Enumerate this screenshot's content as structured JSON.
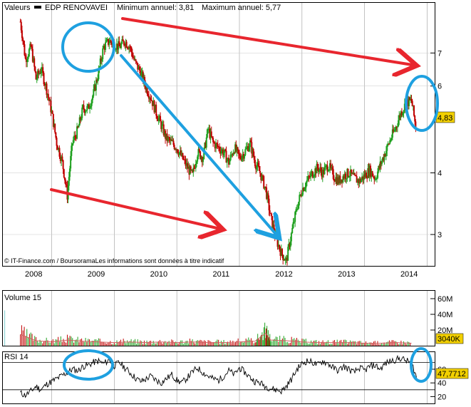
{
  "legend": {
    "series_label": "Valeurs",
    "instrument": "EDP RENOVAVEI",
    "min_label": "Minimum annuel: 3,81",
    "max_label": "Maximum annuel: 5,77"
  },
  "copyright": "© IT-Finance.com / BoursoramaLes informations sont données à titre indicatif",
  "colors": {
    "up": "#1fa01f",
    "down": "#c00000",
    "grid": "#9a9a9a",
    "price_badge": "#f2d000",
    "annotation_red": "#e8262e",
    "annotation_blue": "#1ea0e0",
    "volume_ma": "#d06060",
    "rsi_line": "#000000"
  },
  "chart_data": [
    {
      "type": "candlestick",
      "title": "EDP RENOVAVEI",
      "x_tick_labels": [
        "2008",
        "2009",
        "2010",
        "2011",
        "2012",
        "2013",
        "2014"
      ],
      "y_scale": "log",
      "y_tick_labels": [
        "3",
        "4",
        "6",
        "7"
      ],
      "ylim": [
        2.6,
        8.5
      ],
      "last_value_label": "4,83",
      "grid": true,
      "monthly_close": [
        [
          2008.0,
          8.1
        ],
        [
          2008.08,
          6.8
        ],
        [
          2008.17,
          7.2
        ],
        [
          2008.25,
          6.2
        ],
        [
          2008.33,
          6.5
        ],
        [
          2008.42,
          5.9
        ],
        [
          2008.5,
          5.3
        ],
        [
          2008.58,
          4.6
        ],
        [
          2008.67,
          4.2
        ],
        [
          2008.75,
          3.6
        ],
        [
          2008.83,
          4.6
        ],
        [
          2008.92,
          4.9
        ],
        [
          2009.0,
          5.4
        ],
        [
          2009.08,
          5.4
        ],
        [
          2009.17,
          5.8
        ],
        [
          2009.25,
          6.4
        ],
        [
          2009.33,
          7.2
        ],
        [
          2009.42,
          7.4
        ],
        [
          2009.5,
          7.3
        ],
        [
          2009.58,
          7.2
        ],
        [
          2009.67,
          7.4
        ],
        [
          2009.75,
          7.2
        ],
        [
          2009.83,
          6.7
        ],
        [
          2009.92,
          6.4
        ],
        [
          2010.0,
          6.0
        ],
        [
          2010.08,
          5.7
        ],
        [
          2010.17,
          5.3
        ],
        [
          2010.25,
          5.0
        ],
        [
          2010.33,
          4.7
        ],
        [
          2010.42,
          4.6
        ],
        [
          2010.5,
          4.5
        ],
        [
          2010.58,
          4.3
        ],
        [
          2010.67,
          4.1
        ],
        [
          2010.75,
          3.95
        ],
        [
          2010.83,
          4.4
        ],
        [
          2010.92,
          4.3
        ],
        [
          2011.0,
          4.9
        ],
        [
          2011.08,
          4.6
        ],
        [
          2011.17,
          4.5
        ],
        [
          2011.25,
          4.4
        ],
        [
          2011.33,
          4.2
        ],
        [
          2011.42,
          4.5
        ],
        [
          2011.5,
          4.3
        ],
        [
          2011.58,
          4.4
        ],
        [
          2011.67,
          4.6
        ],
        [
          2011.75,
          4.2
        ],
        [
          2011.83,
          4.0
        ],
        [
          2011.92,
          3.7
        ],
        [
          2012.0,
          3.25
        ],
        [
          2012.08,
          2.95
        ],
        [
          2012.17,
          2.75
        ],
        [
          2012.25,
          2.65
        ],
        [
          2012.33,
          3.0
        ],
        [
          2012.42,
          3.4
        ],
        [
          2012.5,
          3.7
        ],
        [
          2012.58,
          3.85
        ],
        [
          2012.67,
          4.0
        ],
        [
          2012.75,
          4.1
        ],
        [
          2012.83,
          4.0
        ],
        [
          2012.92,
          4.15
        ],
        [
          2013.0,
          3.95
        ],
        [
          2013.08,
          3.85
        ],
        [
          2013.17,
          3.95
        ],
        [
          2013.25,
          4.0
        ],
        [
          2013.33,
          3.9
        ],
        [
          2013.42,
          3.85
        ],
        [
          2013.5,
          3.95
        ],
        [
          2013.58,
          4.05
        ],
        [
          2013.67,
          3.9
        ],
        [
          2013.75,
          4.15
        ],
        [
          2013.83,
          4.4
        ],
        [
          2013.92,
          4.7
        ],
        [
          2014.0,
          4.95
        ],
        [
          2014.08,
          5.3
        ],
        [
          2014.17,
          5.55
        ],
        [
          2014.25,
          5.6
        ],
        [
          2014.33,
          4.83
        ]
      ]
    },
    {
      "type": "bar",
      "title": "Volume 15",
      "y_tick_labels": [
        "60M",
        "40M",
        "20M"
      ],
      "ylim": [
        0,
        70
      ],
      "last_value_label": "3040K",
      "monthly_volume_millions": [
        [
          2008.0,
          18
        ],
        [
          2008.25,
          8
        ],
        [
          2008.5,
          6
        ],
        [
          2008.75,
          9
        ],
        [
          2009.0,
          7
        ],
        [
          2009.25,
          6
        ],
        [
          2009.5,
          5
        ],
        [
          2009.75,
          6
        ],
        [
          2010.0,
          5
        ],
        [
          2010.25,
          6
        ],
        [
          2010.5,
          5
        ],
        [
          2010.75,
          6
        ],
        [
          2011.0,
          5
        ],
        [
          2011.25,
          5
        ],
        [
          2011.5,
          6
        ],
        [
          2011.75,
          7
        ],
        [
          2011.92,
          20
        ],
        [
          2012.0,
          9
        ],
        [
          2012.25,
          8
        ],
        [
          2012.5,
          6
        ],
        [
          2012.75,
          5
        ],
        [
          2013.0,
          5
        ],
        [
          2013.25,
          5
        ],
        [
          2013.5,
          4
        ],
        [
          2013.75,
          4
        ],
        [
          2014.0,
          5
        ],
        [
          2014.25,
          4
        ]
      ]
    },
    {
      "type": "line",
      "title": "RSI 14",
      "y_tick_labels": [
        "60",
        "40",
        "20"
      ],
      "ylim": [
        10,
        85
      ],
      "reference_lines": [
        70,
        30
      ],
      "last_value_label": "47,7712",
      "rsi": [
        [
          2008.0,
          25
        ],
        [
          2008.08,
          22
        ],
        [
          2008.17,
          28
        ],
        [
          2008.25,
          35
        ],
        [
          2008.33,
          30
        ],
        [
          2008.42,
          38
        ],
        [
          2008.5,
          42
        ],
        [
          2008.58,
          46
        ],
        [
          2008.67,
          51
        ],
        [
          2008.75,
          55
        ],
        [
          2008.83,
          60
        ],
        [
          2008.92,
          58
        ],
        [
          2009.0,
          64
        ],
        [
          2009.08,
          66
        ],
        [
          2009.17,
          70
        ],
        [
          2009.25,
          72
        ],
        [
          2009.33,
          68
        ],
        [
          2009.42,
          74
        ],
        [
          2009.5,
          65
        ],
        [
          2009.58,
          70
        ],
        [
          2009.67,
          62
        ],
        [
          2009.75,
          55
        ],
        [
          2009.83,
          48
        ],
        [
          2009.92,
          42
        ],
        [
          2010.0,
          45
        ],
        [
          2010.08,
          50
        ],
        [
          2010.17,
          44
        ],
        [
          2010.25,
          40
        ],
        [
          2010.33,
          46
        ],
        [
          2010.42,
          52
        ],
        [
          2010.5,
          44
        ],
        [
          2010.58,
          40
        ],
        [
          2010.67,
          48
        ],
        [
          2010.75,
          56
        ],
        [
          2010.83,
          62
        ],
        [
          2010.92,
          55
        ],
        [
          2011.0,
          50
        ],
        [
          2011.08,
          46
        ],
        [
          2011.17,
          44
        ],
        [
          2011.25,
          50
        ],
        [
          2011.33,
          58
        ],
        [
          2011.42,
          52
        ],
        [
          2011.5,
          62
        ],
        [
          2011.58,
          56
        ],
        [
          2011.67,
          48
        ],
        [
          2011.75,
          42
        ],
        [
          2011.83,
          40
        ],
        [
          2011.92,
          35
        ],
        [
          2012.0,
          32
        ],
        [
          2012.08,
          30
        ],
        [
          2012.17,
          28
        ],
        [
          2012.25,
          35
        ],
        [
          2012.33,
          45
        ],
        [
          2012.42,
          60
        ],
        [
          2012.5,
          68
        ],
        [
          2012.58,
          72
        ],
        [
          2012.67,
          70
        ],
        [
          2012.75,
          66
        ],
        [
          2012.83,
          72
        ],
        [
          2012.92,
          68
        ],
        [
          2013.0,
          62
        ],
        [
          2013.08,
          58
        ],
        [
          2013.17,
          64
        ],
        [
          2013.25,
          60
        ],
        [
          2013.33,
          55
        ],
        [
          2013.42,
          62
        ],
        [
          2013.5,
          58
        ],
        [
          2013.58,
          64
        ],
        [
          2013.67,
          66
        ],
        [
          2013.75,
          60
        ],
        [
          2013.83,
          68
        ],
        [
          2013.92,
          72
        ],
        [
          2014.0,
          74
        ],
        [
          2014.08,
          76
        ],
        [
          2014.17,
          72
        ],
        [
          2014.25,
          70
        ],
        [
          2014.33,
          47.8
        ]
      ]
    }
  ]
}
